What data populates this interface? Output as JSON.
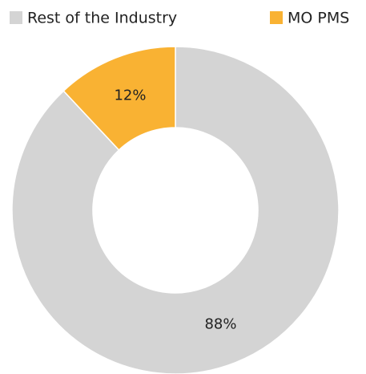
{
  "chart_data": {
    "type": "donut",
    "categories": [
      "Rest of the Industry",
      "MO PMS"
    ],
    "values": [
      88,
      12
    ],
    "value_labels": [
      "88%",
      "12%"
    ],
    "colors": [
      "#d4d4d4",
      "#f9b233"
    ],
    "legend": "top"
  }
}
